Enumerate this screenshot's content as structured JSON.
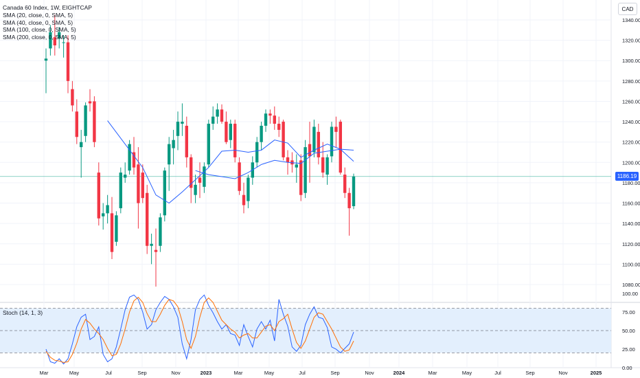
{
  "legend": {
    "title": "Canada 60 Index, 1W, EIGHTCAP",
    "sma_labels": [
      "SMA (20, close, 0, SMA, 5)",
      "SMA (40, close, 0, SMA, 5)",
      "SMA (100, close, 0, SMA, 5)",
      "SMA (200, close, 0, SMA, 5)"
    ]
  },
  "stoch_label": "Stoch (14, 1, 3)",
  "currency": "CAD",
  "last_price_label": "1186.19",
  "colors": {
    "up": "#089981",
    "down": "#f23645",
    "sma": "#2962ff",
    "stoch_k": "#2962ff",
    "stoch_d": "#ff6d00",
    "band_fill": "#e3effd"
  },
  "chart_data": [
    {
      "type": "candlestick",
      "title": "Canada 60 Index, 1W, EIGHTCAP",
      "y_ticks": [
        "1340.00",
        "1320.00",
        "1300.00",
        "1280.00",
        "1260.00",
        "1240.00",
        "1220.00",
        "1200.00",
        "1180.00",
        "1160.00",
        "1140.00",
        "1120.00",
        "1100.00",
        "1080.00"
      ],
      "ylim": [
        1070,
        1345
      ],
      "x_ticks": [
        "Mar",
        "May",
        "Jul",
        "Sep",
        "Nov",
        "2023",
        "Mar",
        "May",
        "Jul",
        "Sep",
        "Nov",
        "2024",
        "Mar",
        "May",
        "Jul",
        "Sep",
        "Nov",
        "2025"
      ],
      "last_price": 1186.19,
      "candles": [
        {
          "o": 1300,
          "h": 1312,
          "l": 1268,
          "c": 1302
        },
        {
          "o": 1312,
          "h": 1335,
          "l": 1305,
          "c": 1328
        },
        {
          "o": 1323,
          "h": 1345,
          "l": 1305,
          "c": 1315
        },
        {
          "o": 1322,
          "h": 1333,
          "l": 1312,
          "c": 1328
        },
        {
          "o": 1318,
          "h": 1325,
          "l": 1303,
          "c": 1318
        },
        {
          "o": 1318,
          "h": 1325,
          "l": 1268,
          "c": 1280
        },
        {
          "o": 1272,
          "h": 1280,
          "l": 1250,
          "c": 1256
        },
        {
          "o": 1250,
          "h": 1262,
          "l": 1218,
          "c": 1225
        },
        {
          "o": 1215,
          "h": 1232,
          "l": 1185,
          "c": 1220
        },
        {
          "o": 1226,
          "h": 1259,
          "l": 1220,
          "c": 1256
        },
        {
          "o": 1260,
          "h": 1272,
          "l": 1250,
          "c": 1258
        },
        {
          "o": 1260,
          "h": 1265,
          "l": 1215,
          "c": 1220
        },
        {
          "o": 1190,
          "h": 1200,
          "l": 1138,
          "c": 1145
        },
        {
          "o": 1147,
          "h": 1160,
          "l": 1134,
          "c": 1150
        },
        {
          "o": 1150,
          "h": 1168,
          "l": 1140,
          "c": 1158
        },
        {
          "o": 1150,
          "h": 1166,
          "l": 1105,
          "c": 1112
        },
        {
          "o": 1122,
          "h": 1152,
          "l": 1118,
          "c": 1148
        },
        {
          "o": 1155,
          "h": 1195,
          "l": 1150,
          "c": 1190
        },
        {
          "o": 1185,
          "h": 1200,
          "l": 1180,
          "c": 1188
        },
        {
          "o": 1192,
          "h": 1222,
          "l": 1188,
          "c": 1218
        },
        {
          "o": 1210,
          "h": 1225,
          "l": 1188,
          "c": 1195
        },
        {
          "o": 1198,
          "h": 1215,
          "l": 1135,
          "c": 1160
        },
        {
          "o": 1190,
          "h": 1198,
          "l": 1160,
          "c": 1165
        },
        {
          "o": 1170,
          "h": 1178,
          "l": 1110,
          "c": 1118
        },
        {
          "o": 1118,
          "h": 1130,
          "l": 1100,
          "c": 1120
        },
        {
          "o": 1114,
          "h": 1135,
          "l": 1078,
          "c": 1112
        },
        {
          "o": 1118,
          "h": 1150,
          "l": 1112,
          "c": 1146
        },
        {
          "o": 1148,
          "h": 1195,
          "l": 1142,
          "c": 1192
        },
        {
          "o": 1198,
          "h": 1225,
          "l": 1172,
          "c": 1218
        },
        {
          "o": 1214,
          "h": 1232,
          "l": 1198,
          "c": 1222
        },
        {
          "o": 1226,
          "h": 1250,
          "l": 1212,
          "c": 1240
        },
        {
          "o": 1238,
          "h": 1258,
          "l": 1226,
          "c": 1240
        },
        {
          "o": 1236,
          "h": 1245,
          "l": 1195,
          "c": 1205
        },
        {
          "o": 1205,
          "h": 1208,
          "l": 1160,
          "c": 1175
        },
        {
          "o": 1168,
          "h": 1188,
          "l": 1160,
          "c": 1178
        },
        {
          "o": 1185,
          "h": 1200,
          "l": 1165,
          "c": 1180
        },
        {
          "o": 1176,
          "h": 1200,
          "l": 1170,
          "c": 1196
        },
        {
          "o": 1198,
          "h": 1242,
          "l": 1195,
          "c": 1238
        },
        {
          "o": 1238,
          "h": 1255,
          "l": 1232,
          "c": 1245
        },
        {
          "o": 1245,
          "h": 1258,
          "l": 1238,
          "c": 1252
        },
        {
          "o": 1252,
          "h": 1257,
          "l": 1238,
          "c": 1240
        },
        {
          "o": 1240,
          "h": 1250,
          "l": 1218,
          "c": 1220
        },
        {
          "o": 1222,
          "h": 1242,
          "l": 1214,
          "c": 1238
        },
        {
          "o": 1238,
          "h": 1242,
          "l": 1200,
          "c": 1205
        },
        {
          "o": 1200,
          "h": 1205,
          "l": 1168,
          "c": 1172
        },
        {
          "o": 1168,
          "h": 1180,
          "l": 1150,
          "c": 1158
        },
        {
          "o": 1162,
          "h": 1188,
          "l": 1155,
          "c": 1185
        },
        {
          "o": 1185,
          "h": 1206,
          "l": 1178,
          "c": 1200
        },
        {
          "o": 1200,
          "h": 1225,
          "l": 1195,
          "c": 1220
        },
        {
          "o": 1220,
          "h": 1240,
          "l": 1212,
          "c": 1236
        },
        {
          "o": 1236,
          "h": 1252,
          "l": 1230,
          "c": 1248
        },
        {
          "o": 1248,
          "h": 1252,
          "l": 1238,
          "c": 1246
        },
        {
          "o": 1246,
          "h": 1255,
          "l": 1232,
          "c": 1238
        },
        {
          "o": 1238,
          "h": 1245,
          "l": 1225,
          "c": 1232
        },
        {
          "o": 1240,
          "h": 1242,
          "l": 1202,
          "c": 1205
        },
        {
          "o": 1205,
          "h": 1212,
          "l": 1188,
          "c": 1200
        },
        {
          "o": 1202,
          "h": 1210,
          "l": 1190,
          "c": 1198
        },
        {
          "o": 1195,
          "h": 1208,
          "l": 1180,
          "c": 1198
        },
        {
          "o": 1202,
          "h": 1208,
          "l": 1162,
          "c": 1168
        },
        {
          "o": 1170,
          "h": 1222,
          "l": 1165,
          "c": 1215
        },
        {
          "o": 1218,
          "h": 1240,
          "l": 1180,
          "c": 1206
        },
        {
          "o": 1210,
          "h": 1242,
          "l": 1205,
          "c": 1235
        },
        {
          "o": 1230,
          "h": 1238,
          "l": 1198,
          "c": 1205
        },
        {
          "o": 1205,
          "h": 1220,
          "l": 1185,
          "c": 1190
        },
        {
          "o": 1188,
          "h": 1208,
          "l": 1178,
          "c": 1205
        },
        {
          "o": 1206,
          "h": 1240,
          "l": 1200,
          "c": 1235
        },
        {
          "o": 1235,
          "h": 1245,
          "l": 1215,
          "c": 1230
        },
        {
          "o": 1240,
          "h": 1242,
          "l": 1188,
          "c": 1190
        },
        {
          "o": 1188,
          "h": 1195,
          "l": 1165,
          "c": 1170
        },
        {
          "o": 1170,
          "h": 1175,
          "l": 1128,
          "c": 1155
        },
        {
          "o": 1157,
          "h": 1189,
          "l": 1154,
          "c": 1186.19
        }
      ],
      "sma_20": [
        {
          "i": 14,
          "v": 1241
        },
        {
          "i": 18,
          "v": 1218
        },
        {
          "i": 22,
          "v": 1195
        },
        {
          "i": 25,
          "v": 1168
        },
        {
          "i": 28,
          "v": 1160
        },
        {
          "i": 31,
          "v": 1171
        },
        {
          "i": 34,
          "v": 1183
        },
        {
          "i": 37,
          "v": 1195
        },
        {
          "i": 40,
          "v": 1211
        },
        {
          "i": 43,
          "v": 1212
        },
        {
          "i": 46,
          "v": 1210
        },
        {
          "i": 49,
          "v": 1212
        },
        {
          "i": 52,
          "v": 1222
        },
        {
          "i": 55,
          "v": 1219
        },
        {
          "i": 58,
          "v": 1205
        },
        {
          "i": 61,
          "v": 1212
        },
        {
          "i": 64,
          "v": 1218
        },
        {
          "i": 67,
          "v": 1213
        },
        {
          "i": 70,
          "v": 1201
        }
      ],
      "sma_40": [
        {
          "i": 34,
          "v": 1192
        },
        {
          "i": 37,
          "v": 1188
        },
        {
          "i": 40,
          "v": 1186
        },
        {
          "i": 43,
          "v": 1184
        },
        {
          "i": 46,
          "v": 1190
        },
        {
          "i": 49,
          "v": 1198
        },
        {
          "i": 52,
          "v": 1202
        },
        {
          "i": 55,
          "v": 1200
        },
        {
          "i": 58,
          "v": 1199
        },
        {
          "i": 61,
          "v": 1209
        },
        {
          "i": 64,
          "v": 1211
        },
        {
          "i": 67,
          "v": 1213
        },
        {
          "i": 70,
          "v": 1212
        }
      ]
    },
    {
      "type": "line",
      "title": "Stoch (14, 1, 3)",
      "y_ticks": [
        "100.00",
        "75.00",
        "50.00",
        "25.00",
        "0.00"
      ],
      "ylim": [
        0,
        100
      ],
      "bands": {
        "upper": 80,
        "middle": 50,
        "lower": 20
      },
      "series": [
        {
          "values": [
            25,
            8,
            6,
            12,
            5,
            12,
            32,
            55,
            68,
            72,
            38,
            42,
            55,
            18,
            8,
            12,
            28,
            52,
            78,
            95,
            98,
            92,
            75,
            52,
            58,
            78,
            88,
            96,
            92,
            82,
            68,
            32,
            12,
            38,
            78,
            92,
            98,
            84,
            74,
            62,
            52,
            58,
            46,
            44,
            30,
            58,
            42,
            28,
            52,
            62,
            52,
            64,
            36,
            92,
            72,
            56,
            28,
            22,
            30,
            58,
            72,
            82,
            68,
            66,
            54,
            28,
            25,
            20,
            26,
            32,
            48
          ]
        },
        {
          "values": [
            22,
            14,
            10,
            9,
            7,
            8,
            18,
            33,
            52,
            65,
            60,
            52,
            46,
            38,
            26,
            16,
            18,
            32,
            52,
            75,
            90,
            95,
            88,
            73,
            62,
            62,
            72,
            84,
            92,
            90,
            82,
            62,
            38,
            26,
            42,
            68,
            88,
            94,
            88,
            76,
            64,
            58,
            52,
            48,
            40,
            44,
            46,
            40,
            40,
            48,
            56,
            58,
            50,
            62,
            66,
            72,
            52,
            34,
            26,
            36,
            52,
            68,
            74,
            72,
            62,
            52,
            40,
            28,
            22,
            24,
            36
          ]
        }
      ]
    }
  ]
}
